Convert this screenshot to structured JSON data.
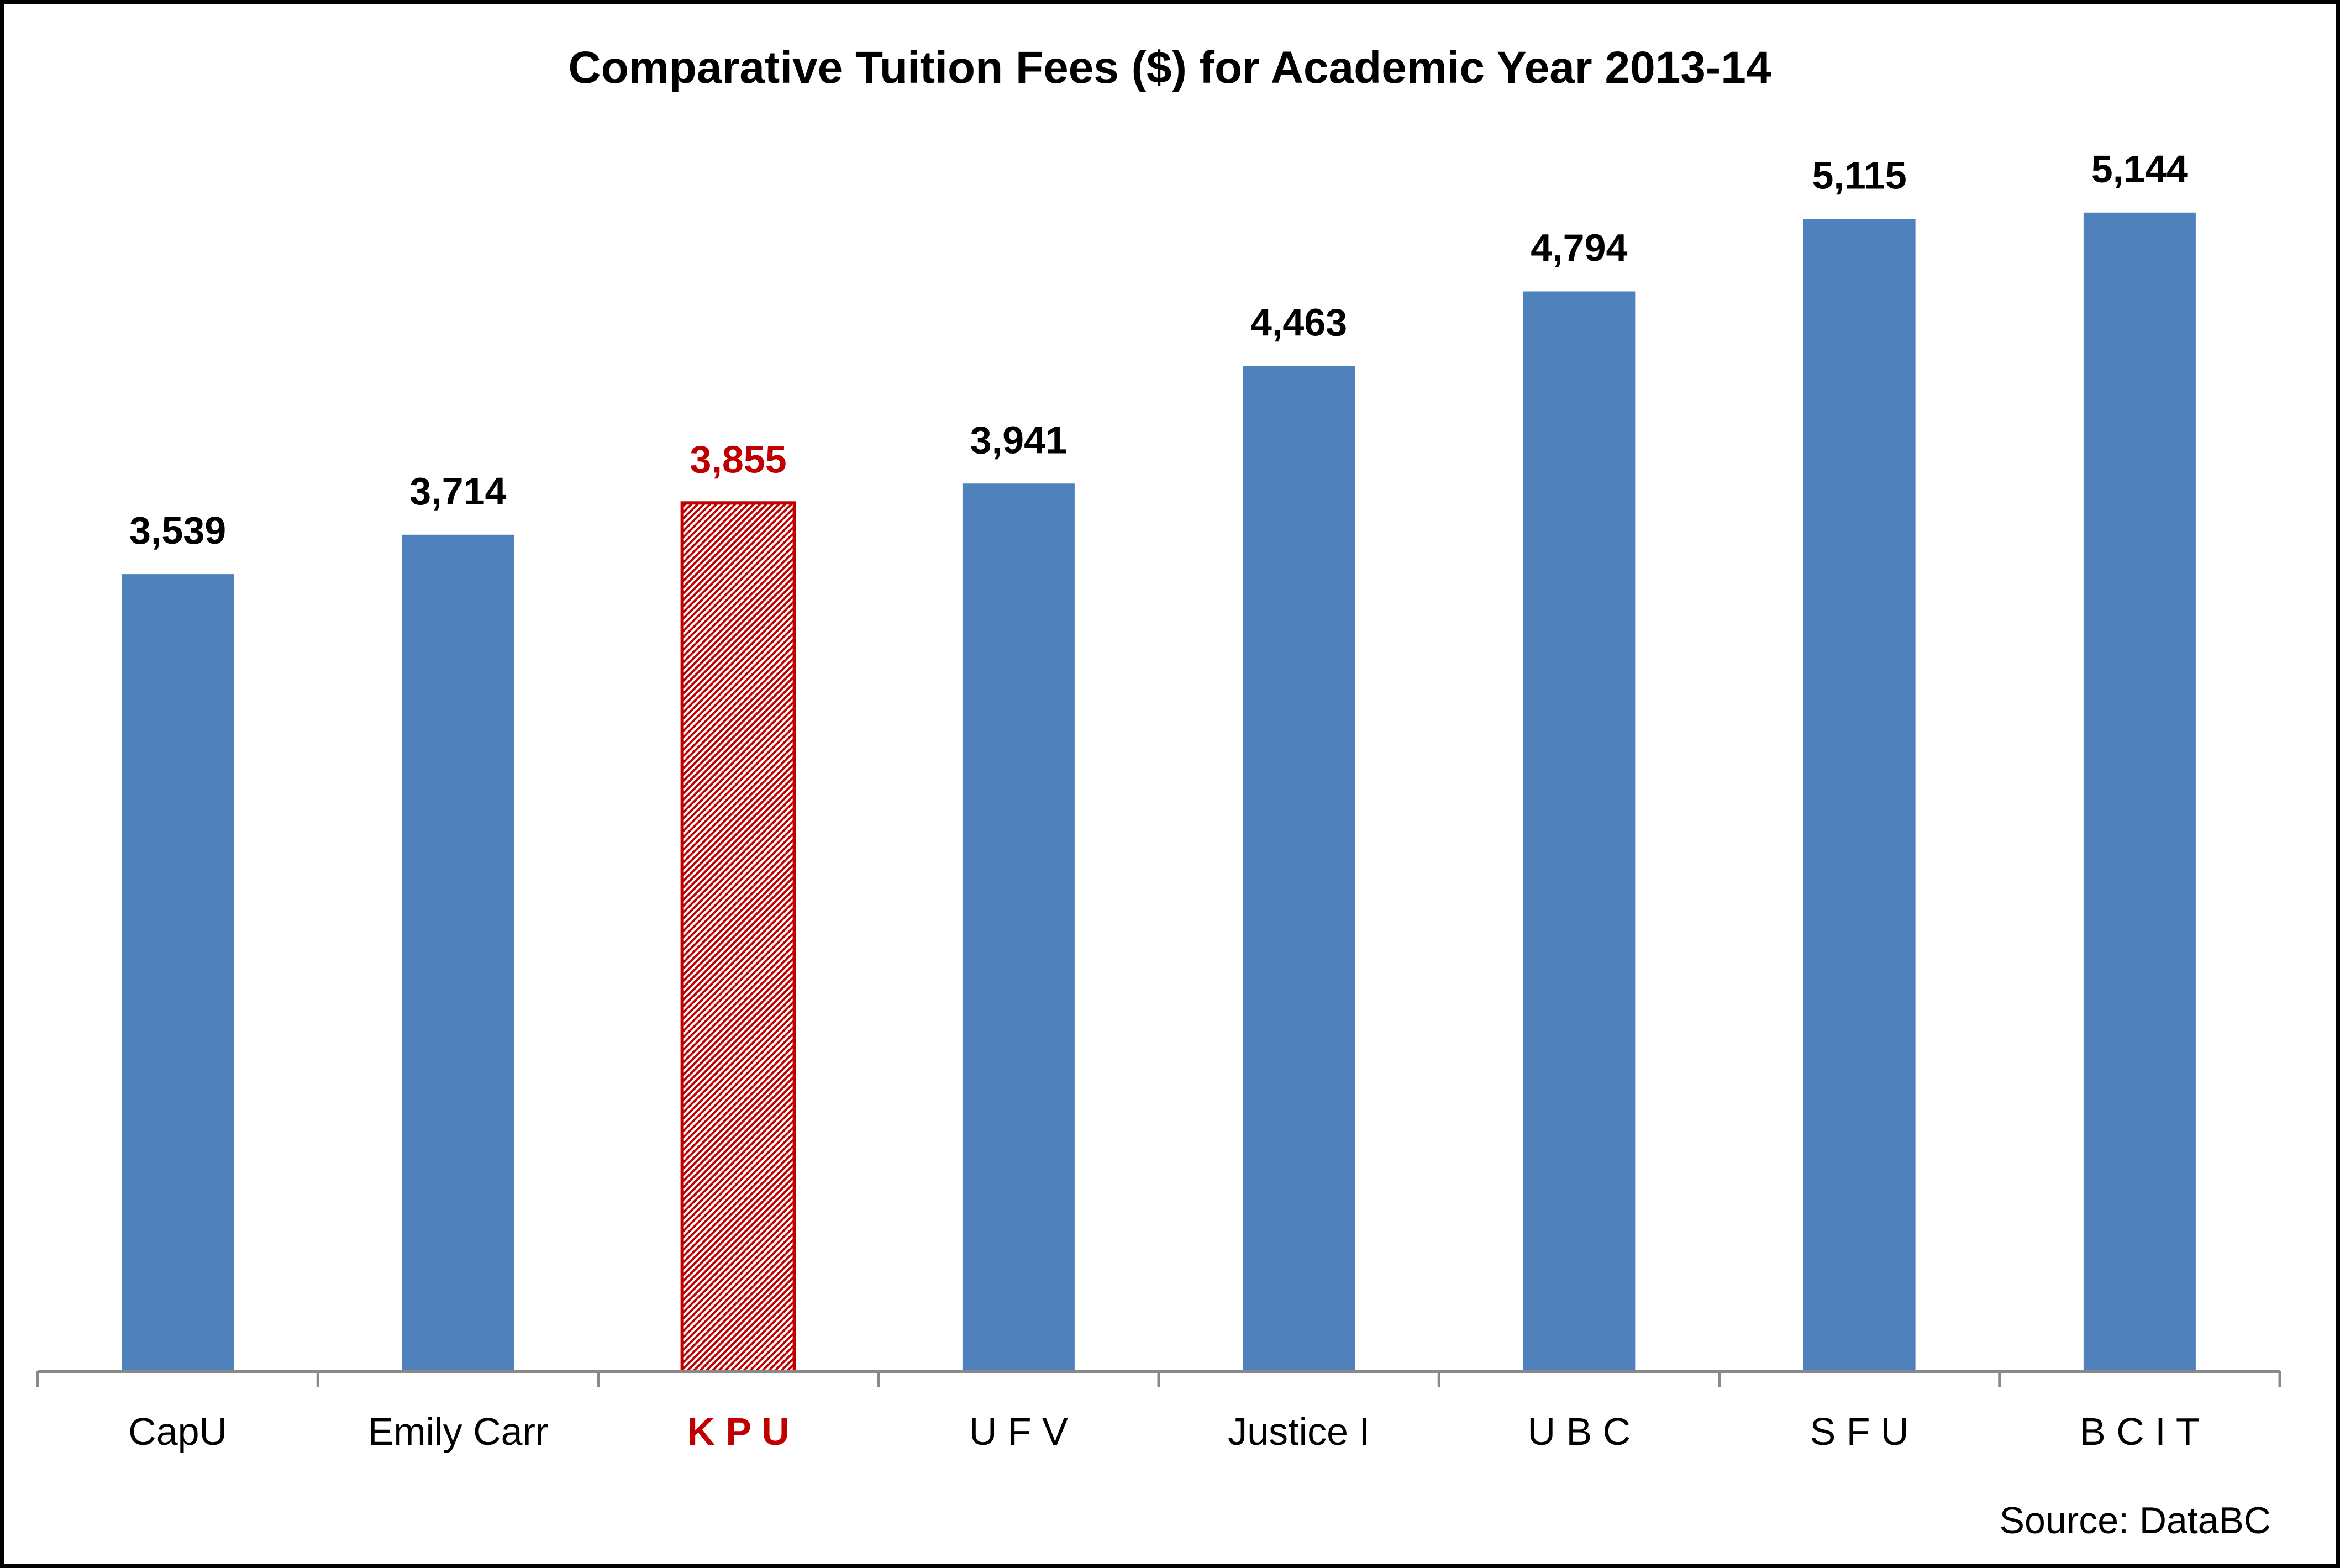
{
  "chart_data": {
    "type": "bar",
    "title": "Comparative Tuition Fees ($) for Academic Year 2013-14",
    "categories": [
      "CapU",
      "Emily Carr",
      "K P U",
      "U F V",
      "Justice I",
      "U B C",
      "S F U",
      "B C I T"
    ],
    "values": [
      3539,
      3714,
      3855,
      3941,
      4463,
      4794,
      5115,
      5144
    ],
    "value_labels": [
      "3,539",
      "3,714",
      "3,855",
      "3,941",
      "4,463",
      "4,794",
      "5,115",
      "5,144"
    ],
    "highlight_index": 2,
    "xlabel": "",
    "ylabel": "",
    "ylim": [
      0,
      5144
    ],
    "grid": false,
    "legend": "none",
    "source": "Source: DataBC",
    "colors": {
      "bar": "#4F81BD",
      "highlight_fill": "#E08080",
      "highlight_stroke": "#C00000",
      "highlight_text": "#C00000",
      "axis": "#898989",
      "text": "#000000"
    }
  }
}
